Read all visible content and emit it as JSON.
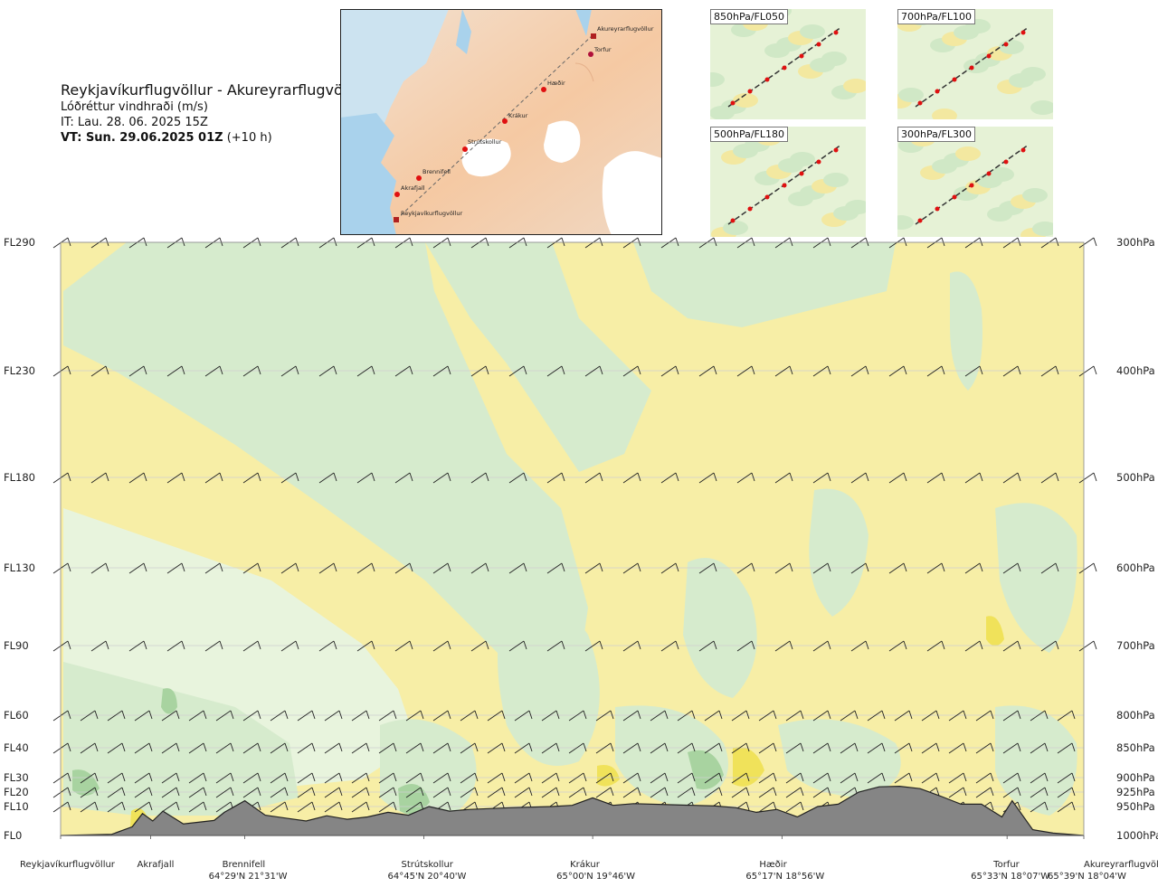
{
  "header": {
    "route_title": "Reykjavíkurflugvöllur - Akureyrarflugvöllur",
    "product": "Lóðréttur vindhraði (m/s)",
    "issue_time": "IT: Lau. 28. 06. 2025 15Z",
    "valid_time_bold": "VT: Sun. 29.06.2025 01Z",
    "valid_offset": "(+10 h)"
  },
  "overview_map": {
    "waypoint_labels": [
      "Akureyrarflugvöllur",
      "Torfur",
      "Hæðir",
      "Krákur",
      "Strútskollur",
      "Brennifell",
      "Akrafjall",
      "Reykjavíkurflugvöllur"
    ]
  },
  "mini_maps": [
    {
      "label": "850hPa/FL050"
    },
    {
      "label": "700hPa/FL100"
    },
    {
      "label": "500hPa/FL180"
    },
    {
      "label": "300hPa/FL300"
    }
  ],
  "chart_data": {
    "type": "heatmap",
    "title": "Lóðréttur vindhraði (m/s)",
    "flight_levels": [
      "FL290",
      "FL230",
      "FL180",
      "FL130",
      "FL90",
      "FL60",
      "FL40",
      "FL30",
      "FL20",
      "FL10",
      "FL0"
    ],
    "pressure_levels": [
      "300hPa",
      "400hPa",
      "500hPa",
      "600hPa",
      "700hPa",
      "800hPa",
      "850hPa",
      "900hPa",
      "925hPa",
      "950hPa",
      "1000hPa"
    ],
    "pressure_values_hpa": [
      300,
      400,
      500,
      600,
      700,
      800,
      850,
      900,
      925,
      950,
      1000
    ],
    "waypoints": [
      {
        "name": "Reykjavíkurflugvöllur",
        "coord": "",
        "fraction": 0.0
      },
      {
        "name": "Akrafjall",
        "coord": "",
        "fraction": 0.088
      },
      {
        "name": "Brennifell",
        "coord": "64°29'N 21°31'W",
        "fraction": 0.18
      },
      {
        "name": "Strútskollur",
        "coord": "64°45'N 20°40'W",
        "fraction": 0.355
      },
      {
        "name": "Krákur",
        "coord": "65°00'N 19°46'W",
        "fraction": 0.52
      },
      {
        "name": "Hæðir",
        "coord": "65°17'N 18°56'W",
        "fraction": 0.705
      },
      {
        "name": "Torfur",
        "coord": "65°33'N 18°07'W",
        "fraction": 0.925
      },
      {
        "name": "Akureyrarflugvöllur",
        "coord": "65°39'N 18°04'W",
        "fraction": 1.0
      }
    ],
    "terrain_fraction_along_route": [
      0.0,
      0.05,
      0.07,
      0.08,
      0.09,
      0.1,
      0.12,
      0.15,
      0.16,
      0.18,
      0.2,
      0.22,
      0.24,
      0.26,
      0.28,
      0.3,
      0.32,
      0.34,
      0.36,
      0.38,
      0.4,
      0.44,
      0.48,
      0.5,
      0.52,
      0.54,
      0.56,
      0.6,
      0.64,
      0.66,
      0.68,
      0.7,
      0.72,
      0.74,
      0.76,
      0.78,
      0.8,
      0.82,
      0.84,
      0.86,
      0.88,
      0.9,
      0.92,
      0.93,
      0.95,
      0.97,
      1.0
    ],
    "terrain_hpa": [
      1000,
      998,
      985,
      962,
      975,
      958,
      980,
      974,
      960,
      940,
      965,
      970,
      975,
      966,
      972,
      968,
      960,
      965,
      950,
      958,
      955,
      952,
      950,
      948,
      935,
      948,
      945,
      947,
      949,
      952,
      960,
      955,
      968,
      950,
      946,
      925,
      916,
      915,
      919,
      932,
      946,
      946,
      968,
      940,
      990,
      996,
      1000
    ],
    "legend": []
  }
}
